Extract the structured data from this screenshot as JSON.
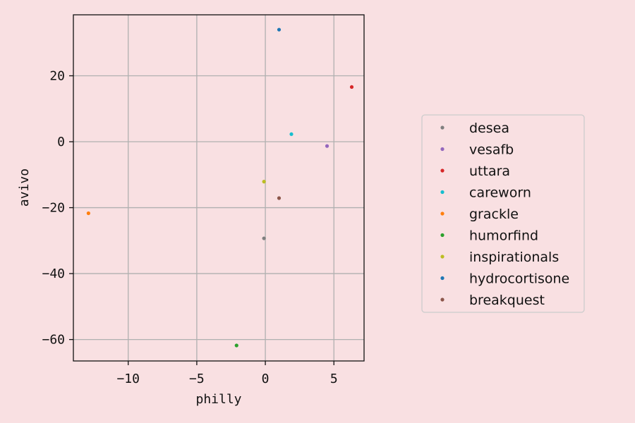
{
  "chart_data": {
    "type": "scatter",
    "title": "",
    "xlabel": "philly",
    "ylabel": "avivo",
    "xlim": [
      -14,
      7.2
    ],
    "ylim": [
      -66.5,
      38.5
    ],
    "xticks": [
      -10,
      -5,
      0,
      5
    ],
    "yticks": [
      20,
      0,
      -20,
      -40,
      -60
    ],
    "xtick_labels": [
      "−10",
      "−5",
      "0",
      "5"
    ],
    "ytick_labels": [
      "20",
      "0",
      "−20",
      "−40",
      "−60"
    ],
    "grid": true,
    "legend_position": "right",
    "series": [
      {
        "name": "desea",
        "color": "#7f7f7f",
        "points": [
          [
            -0.1,
            -29.3
          ]
        ]
      },
      {
        "name": "vesafb",
        "color": "#9467bd",
        "points": [
          [
            4.5,
            -1.3
          ]
        ]
      },
      {
        "name": "uttara",
        "color": "#d62728",
        "points": [
          [
            6.3,
            16.6
          ]
        ]
      },
      {
        "name": "careworn",
        "color": "#17becf",
        "points": [
          [
            1.9,
            2.3
          ]
        ]
      },
      {
        "name": "grackle",
        "color": "#ff7f0e",
        "points": [
          [
            -12.9,
            -21.7
          ]
        ]
      },
      {
        "name": "humorfind",
        "color": "#2ca02c",
        "points": [
          [
            -2.1,
            -61.8
          ]
        ]
      },
      {
        "name": "inspirationals",
        "color": "#bcbd22",
        "points": [
          [
            -0.1,
            -12.1
          ]
        ]
      },
      {
        "name": "hydrocortisone",
        "color": "#1f77b4",
        "points": [
          [
            1.0,
            34.0
          ]
        ]
      },
      {
        "name": "breakquest",
        "color": "#8c564b",
        "points": [
          [
            1.0,
            -17.1
          ]
        ]
      }
    ]
  }
}
